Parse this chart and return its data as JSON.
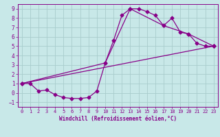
{
  "background_color": "#c8e8e8",
  "grid_color": "#a8cccc",
  "line_color": "#880088",
  "marker_color": "#880088",
  "xlabel": "Windchill (Refroidissement éolien,°C)",
  "xlim": [
    -0.5,
    23.5
  ],
  "ylim": [
    -1.5,
    9.5
  ],
  "xticks": [
    0,
    1,
    2,
    3,
    4,
    5,
    6,
    7,
    8,
    9,
    10,
    11,
    12,
    13,
    14,
    15,
    16,
    17,
    18,
    19,
    20,
    21,
    22,
    23
  ],
  "yticks": [
    -1,
    0,
    1,
    2,
    3,
    4,
    5,
    6,
    7,
    8,
    9
  ],
  "curve1_x": [
    0,
    1,
    2,
    3,
    4,
    5,
    6,
    7,
    8,
    9,
    10,
    11,
    12,
    13,
    14,
    15,
    16,
    17,
    18,
    19,
    20,
    21,
    22,
    23
  ],
  "curve1_y": [
    1.0,
    1.0,
    0.2,
    0.3,
    -0.2,
    -0.5,
    -0.6,
    -0.6,
    -0.5,
    0.2,
    3.2,
    5.6,
    8.3,
    9.0,
    9.0,
    8.7,
    8.3,
    7.2,
    8.0,
    6.5,
    6.3,
    5.3,
    5.0,
    5.0
  ],
  "curve2_x": [
    0,
    10,
    13,
    17,
    20,
    23
  ],
  "curve2_y": [
    1.0,
    3.2,
    9.0,
    7.2,
    6.3,
    5.0
  ],
  "curve3_x": [
    0,
    23
  ],
  "curve3_y": [
    1.0,
    5.0
  ],
  "marker_size": 2.5,
  "line_width": 0.9,
  "tick_fontsize": 5.0,
  "xlabel_fontsize": 5.5
}
